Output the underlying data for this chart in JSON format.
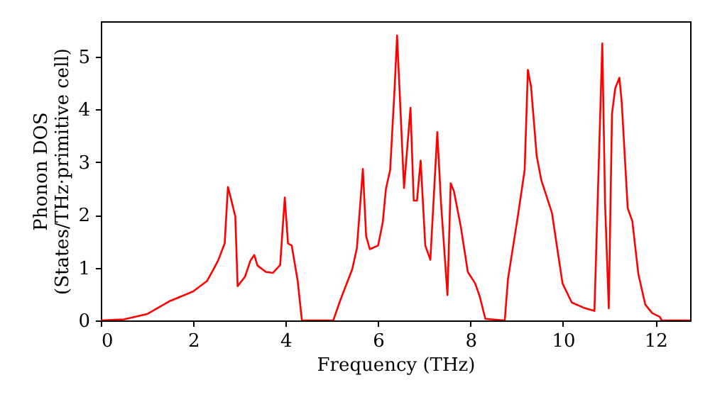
{
  "chart_data": {
    "type": "line",
    "xlabel": "Frequency (THz)",
    "ylabel": "Phonon DOS\n(States/THz·primitive cell)",
    "xlim": [
      0,
      12.75
    ],
    "ylim": [
      0,
      5.67
    ],
    "xticks": [
      0,
      2,
      4,
      6,
      8,
      10,
      12
    ],
    "yticks": [
      0,
      1,
      2,
      3,
      4,
      5
    ],
    "grid": false,
    "series": [
      {
        "color": "#ff0000",
        "x": [
          0,
          0.5,
          1.0,
          1.5,
          2.0,
          2.3,
          2.45,
          2.54,
          2.68,
          2.75,
          2.81,
          2.91,
          2.96,
          3.12,
          3.24,
          3.32,
          3.39,
          3.57,
          3.72,
          3.88,
          3.98,
          4.05,
          4.13,
          4.26,
          4.35,
          5.03,
          5.18,
          5.44,
          5.54,
          5.67,
          5.74,
          5.82,
          6.0,
          6.1,
          6.17,
          6.26,
          6.36,
          6.41,
          6.56,
          6.7,
          6.77,
          6.84,
          6.92,
          7.02,
          7.13,
          7.28,
          7.36,
          7.5,
          7.57,
          7.64,
          7.79,
          7.94,
          8.1,
          8.2,
          8.32,
          8.74,
          8.81,
          9.02,
          9.17,
          9.24,
          9.31,
          9.43,
          9.53,
          9.76,
          9.88,
          9.99,
          10.19,
          10.45,
          10.68,
          10.85,
          10.91,
          10.99,
          11.06,
          11.13,
          11.22,
          11.27,
          11.4,
          11.5,
          11.63,
          11.78,
          11.93,
          12.09,
          12.14,
          12.75
        ],
        "values": [
          0,
          0.02,
          0.12,
          0.37,
          0.55,
          0.75,
          0.99,
          1.14,
          1.46,
          2.53,
          2.33,
          1.97,
          0.65,
          0.83,
          1.14,
          1.24,
          1.04,
          0.92,
          0.9,
          1.05,
          2.33,
          1.46,
          1.42,
          0.75,
          0,
          0,
          0.38,
          0.97,
          1.37,
          2.87,
          1.6,
          1.35,
          1.42,
          1.86,
          2.5,
          2.85,
          4.46,
          5.4,
          2.51,
          4.03,
          2.27,
          2.27,
          3.03,
          1.42,
          1.15,
          3.57,
          2.23,
          0.48,
          2.6,
          2.45,
          1.77,
          0.92,
          0.7,
          0.45,
          0.03,
          0,
          0.79,
          1.96,
          2.85,
          4.75,
          4.42,
          3.12,
          2.66,
          2.04,
          1.34,
          0.7,
          0.34,
          0.24,
          0.18,
          5.25,
          2.22,
          0.23,
          3.92,
          4.4,
          4.6,
          4.14,
          2.13,
          1.88,
          0.88,
          0.3,
          0.14,
          0.07,
          0,
          0
        ]
      }
    ]
  }
}
